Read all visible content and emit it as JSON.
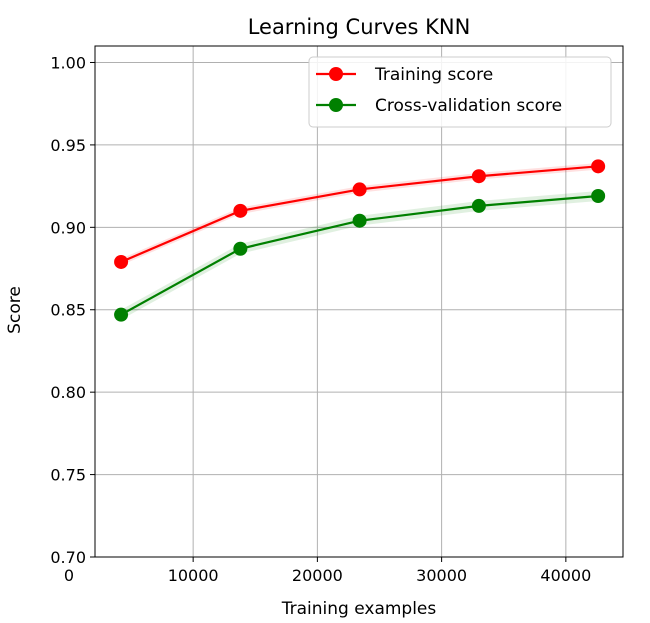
{
  "chart_data": {
    "type": "line",
    "title": "Learning Curves KNN",
    "xlabel": "Training examples",
    "ylabel": "Score",
    "xlim": [
      2100,
      44600
    ],
    "ylim": [
      0.7,
      1.01
    ],
    "xticks": [
      0,
      10000,
      20000,
      30000,
      40000
    ],
    "xtick_labels": [
      "0",
      "10000",
      "20000",
      "30000",
      "40000"
    ],
    "yticks": [
      0.7,
      0.75,
      0.8,
      0.85,
      0.9,
      0.95,
      1.0
    ],
    "ytick_labels": [
      "0.70",
      "0.75",
      "0.80",
      "0.85",
      "0.90",
      "0.95",
      "1.00"
    ],
    "grid": true,
    "legend_position": "top-right",
    "x": [
      4200,
      13800,
      23400,
      33000,
      42600
    ],
    "series": [
      {
        "name": "Training score",
        "color": "#ff0000",
        "values": [
          0.879,
          0.91,
          0.923,
          0.931,
          0.937
        ],
        "band": 0.002
      },
      {
        "name": "Cross-validation score",
        "color": "#008000",
        "values": [
          0.847,
          0.887,
          0.904,
          0.913,
          0.919
        ],
        "band": 0.003
      }
    ]
  }
}
